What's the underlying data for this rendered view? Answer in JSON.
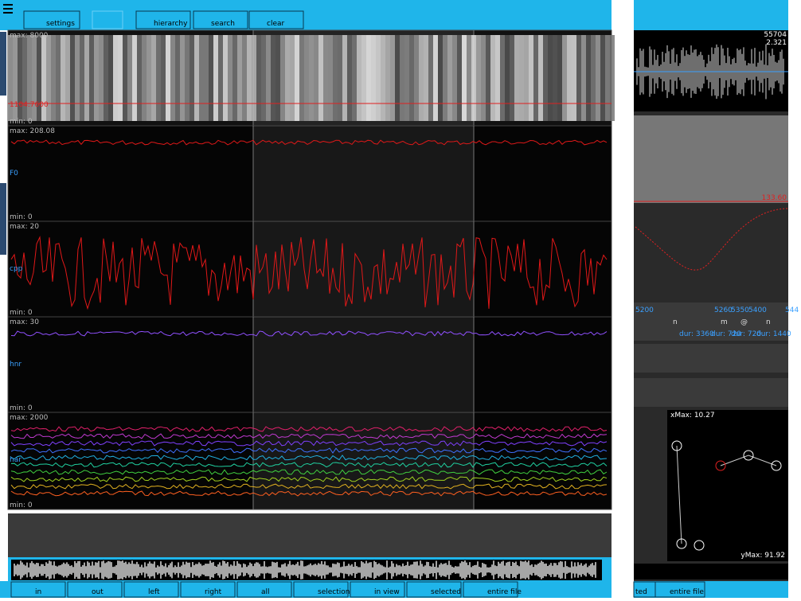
{
  "toolbar": {
    "buttons": [
      "settings",
      "hierarchy",
      "search",
      "clear"
    ]
  },
  "tracks": [
    {
      "max": "max: 8000",
      "min": "min: 0",
      "cursor": "1104.7600"
    },
    {
      "name": "F0",
      "max": "max: 208.08",
      "min": "min: 0"
    },
    {
      "name": "cpp",
      "max": "max: 20",
      "min": "min: 0"
    },
    {
      "name": "hnr",
      "max": "max: 30",
      "min": "min: 0"
    },
    {
      "name": "har",
      "max": "max: 2000",
      "min": "min: 0"
    }
  ],
  "navigation": [
    "in",
    "out",
    "left",
    "right",
    "all",
    "selection",
    "in view",
    "selected",
    "entire file"
  ],
  "side_panel": {
    "sample": "55704",
    "time": "2.321",
    "spectro_value": "133.60",
    "boundaries": [
      "5200",
      "5260",
      "5350",
      "5400",
      "544"
    ],
    "labels": [
      "n",
      "m",
      "@",
      "n"
    ],
    "durations": [
      "dur: 3360",
      "dur: 720",
      "dur: 720",
      "dur: 1440"
    ],
    "ema_x_max": "xMax: 10.27",
    "ema_y_max": "yMax: 91.92",
    "buttons": [
      "ted",
      "entire file"
    ]
  }
}
